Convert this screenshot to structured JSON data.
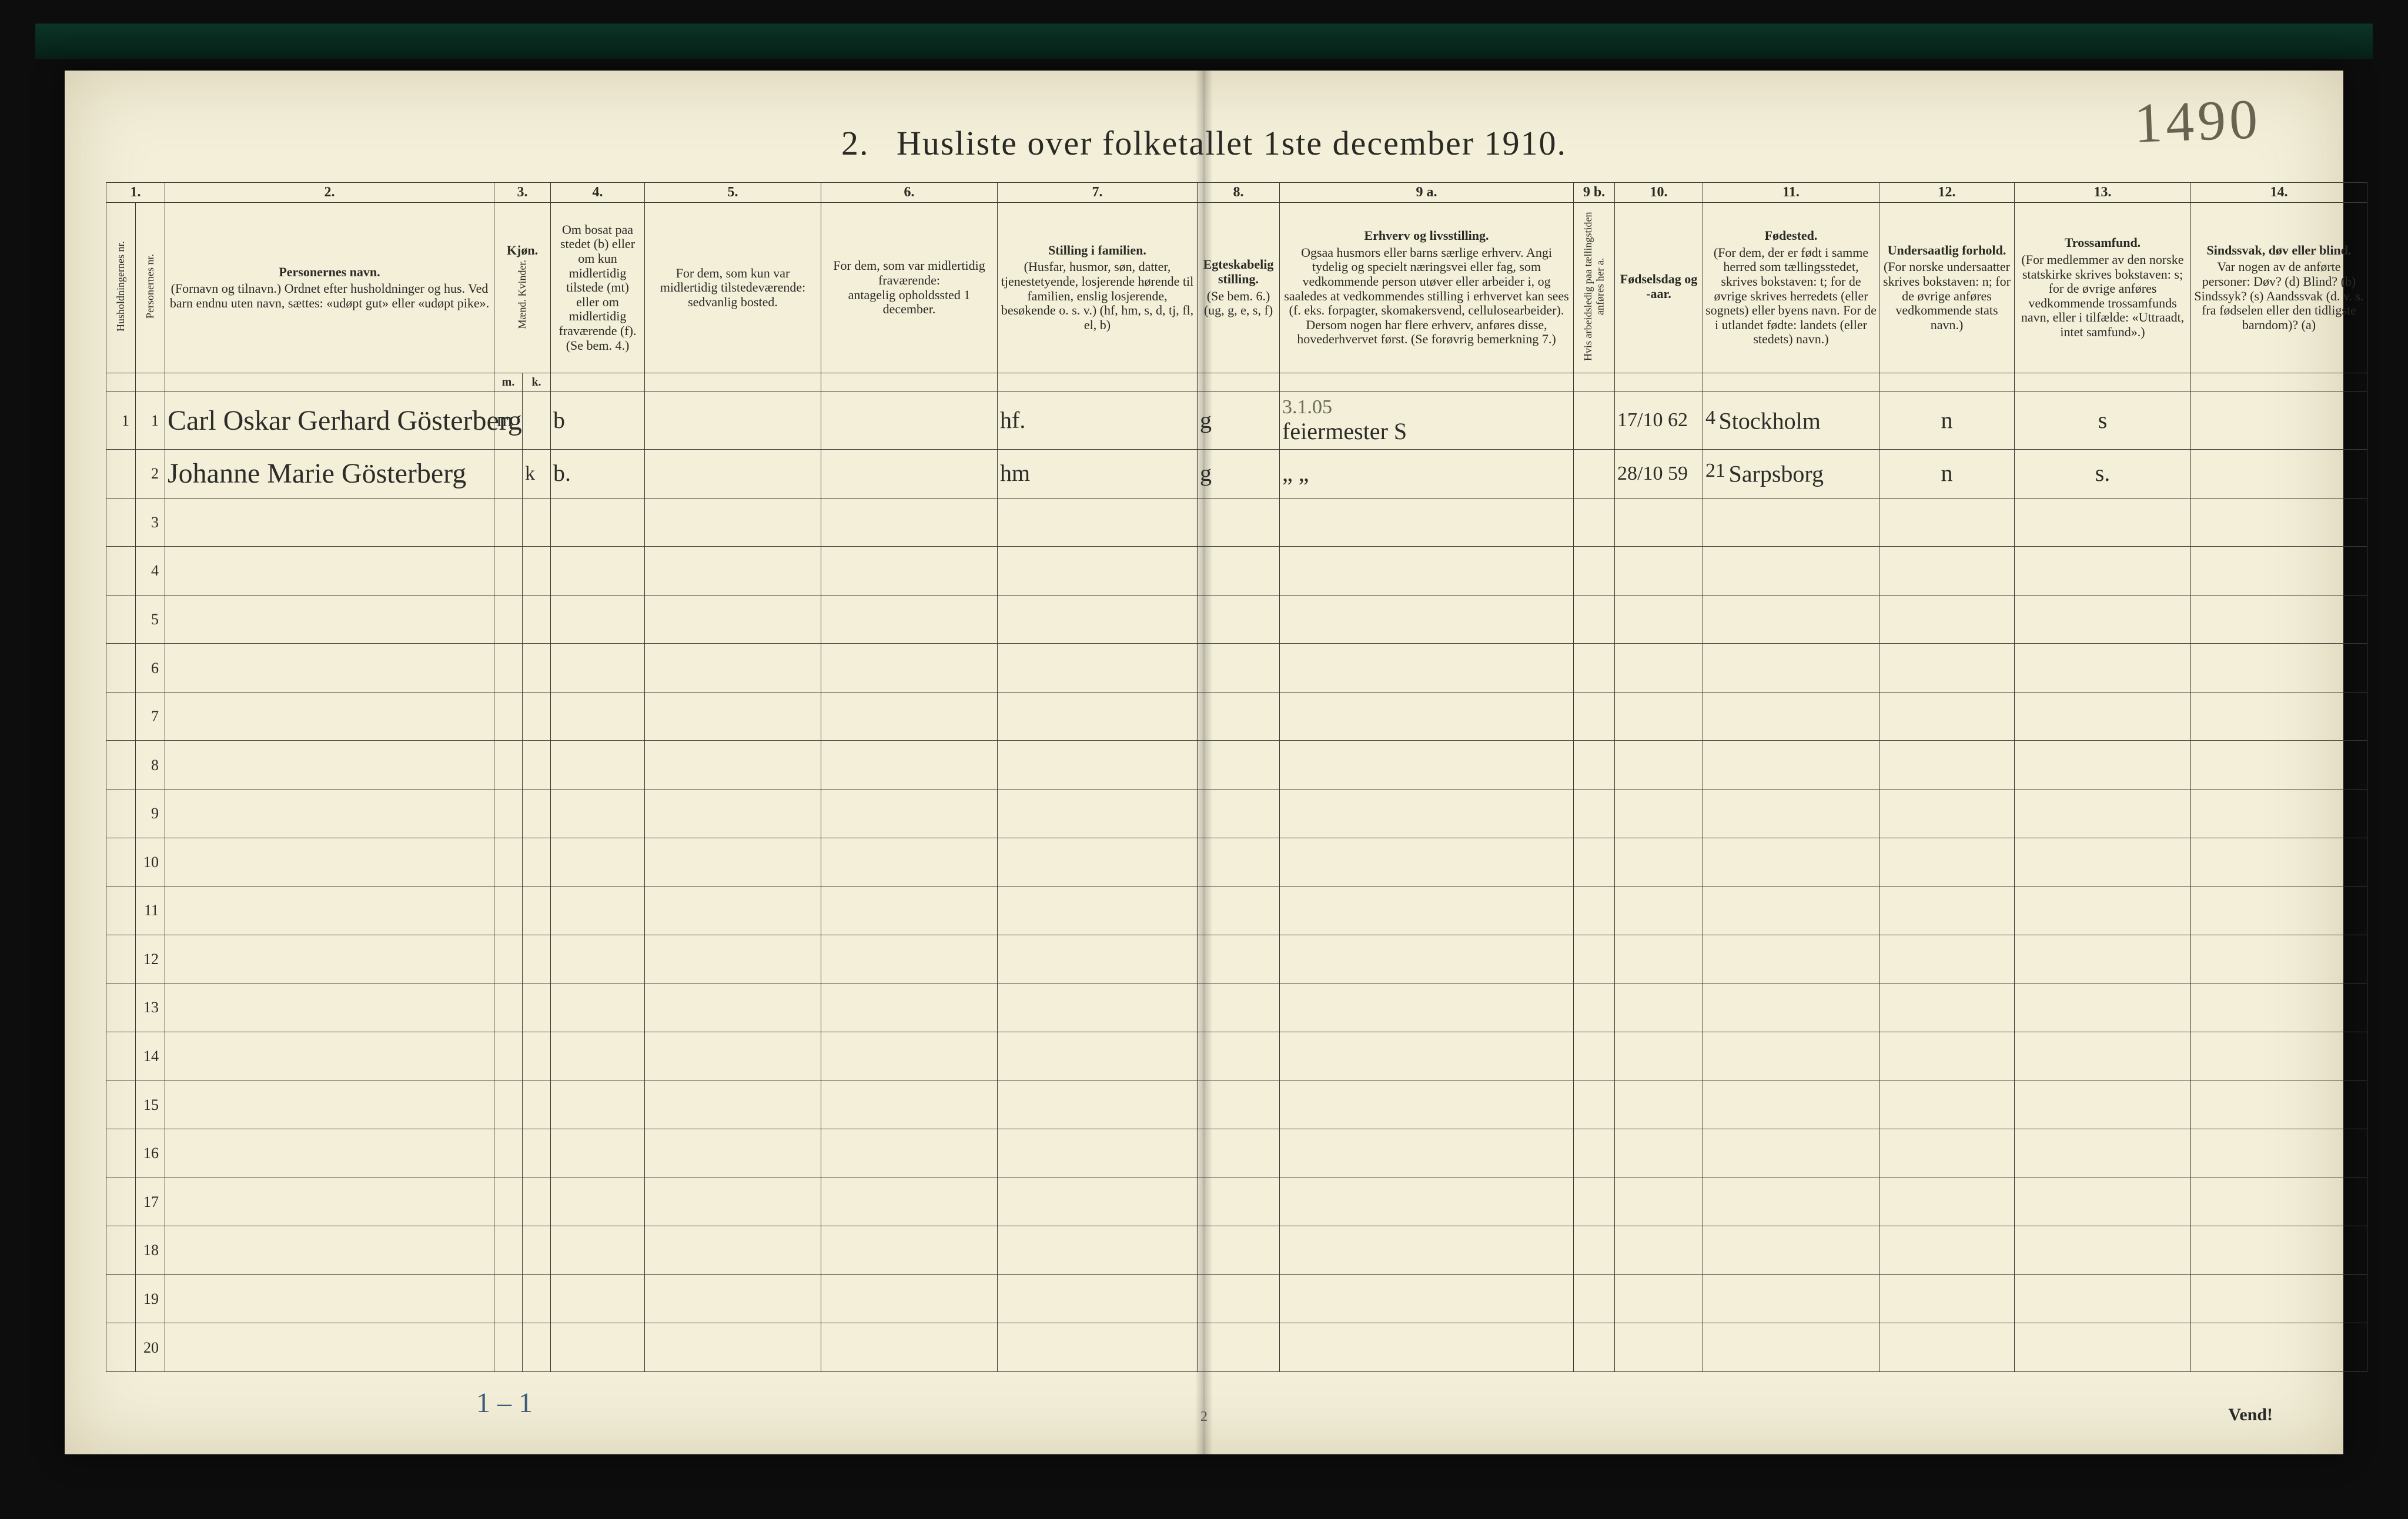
{
  "background_color": "#1a1a1a",
  "paper_color": "#f3efd9",
  "ink_color": "#2a2a25",
  "rule_color": "#3a3a33",
  "accent_strip_color": "#0b3526",
  "handwriting_color": "#2c2c28",
  "pencil_color": "#3a5a7a",
  "handwritten_page_number": "1490",
  "title_prefix": "2.",
  "title": "Husliste over folketallet 1ste december 1910.",
  "turn_page_label": "Vend!",
  "footer_handnote": "1 – 1",
  "printed_page_number": "2",
  "column_numbers": [
    "1.",
    "",
    "2.",
    "3.",
    "",
    "4.",
    "5.",
    "6.",
    "7.",
    "8.",
    "9 a.",
    "9 b.",
    "10.",
    "11.",
    "12.",
    "13.",
    "14."
  ],
  "headers": {
    "c1": "Husholdningernes nr.",
    "c1b": "Personernes nr.",
    "c2_title": "Personernes navn.",
    "c2_body": "(Fornavn og tilnavn.)\nOrdnet efter husholdninger og hus.\nVed barn endnu uten navn, sættes: «udøpt gut» eller «udøpt pike».",
    "c3_title": "Kjøn.",
    "c3_sub": "Mænd. Kvinder.",
    "c3_m": "m.",
    "c3_k": "k.",
    "c4_title": "Om bosat paa stedet (b) eller om kun midlertidig tilstede (mt) eller om midlertidig fraværende (f).",
    "c4_note": "(Se bem. 4.)",
    "c5_title": "For dem, som kun var midlertidig tilstedeværende:",
    "c5_body": "sedvanlig bosted.",
    "c6_title": "For dem, som var midlertidig fraværende:",
    "c6_body": "antagelig opholdssted 1 december.",
    "c7_title": "Stilling i familien.",
    "c7_body": "(Husfar, husmor, søn, datter, tjenestetyende, losjerende hørende til familien, enslig losjerende, besøkende o. s. v.)\n(hf, hm, s, d, tj, fl, el, b)",
    "c8_title": "Egteskabelig stilling.",
    "c8_body": "(Se bem. 6.)\n(ug, g, e, s, f)",
    "c9a_title": "Erhverv og livsstilling.",
    "c9a_body": "Ogsaa husmors eller barns særlige erhverv. Angi tydelig og specielt næringsvei eller fag, som vedkommende person utøver eller arbeider i, og saaledes at vedkommendes stilling i erhvervet kan sees (f. eks. forpagter, skomakersvend, cellulosearbeider). Dersom nogen har flere erhverv, anføres disse, hovederhvervet først.\n(Se forøvrig bemerkning 7.)",
    "c9b_title": "Hvis arbeidsledig paa tællingstiden anføres her a.",
    "c10_title": "Fødselsdag og -aar.",
    "c11_title": "Fødested.",
    "c11_body": "(For dem, der er født i samme herred som tællingsstedet, skrives bokstaven: t; for de øvrige skrives herredets (eller sognets) eller byens navn. For de i utlandet fødte: landets (eller stedets) navn.)",
    "c12_title": "Undersaatlig forhold.",
    "c12_body": "(For norske undersaatter skrives bokstaven: n; for de øvrige anføres vedkommende stats navn.)",
    "c13_title": "Trossamfund.",
    "c13_body": "(For medlemmer av den norske statskirke skrives bokstaven: s; for de øvrige anføres vedkommende trossamfunds navn, eller i tilfælde: «Uttraadt, intet samfund».)",
    "c14_title": "Sindssvak, døv eller blind.",
    "c14_body": "Var nogen av de anførte personer:\nDøv? (d)\nBlind? (b)\nSindssyk? (s)\nAandssvak (d. v. s. fra fødselen eller den tidligste barndom)? (a)"
  },
  "row_count": 20,
  "entries": [
    {
      "row": 1,
      "name": "Carl Oskar Gerhard Gösterberg",
      "sex_m": "m",
      "sex_k": "",
      "residence": "b",
      "family_pos": "hf.",
      "marital": "g",
      "occupation_pencil": "3.1.05",
      "occupation": "feiermester S",
      "birth": "17/10 62",
      "birthplace_sup": "4",
      "birthplace": "Stockholm",
      "nationality": "n",
      "religion": "s"
    },
    {
      "row": 2,
      "name": "Johanne Marie Gösterberg",
      "sex_m": "",
      "sex_k": "k",
      "residence": "b.",
      "family_pos": "hm",
      "marital": "g",
      "occupation_pencil": "",
      "occupation": "„  „",
      "birth": "28/10 59",
      "birthplace_sup": "21",
      "birthplace": "Sarpsborg",
      "nationality": "n",
      "religion": "s."
    }
  ]
}
